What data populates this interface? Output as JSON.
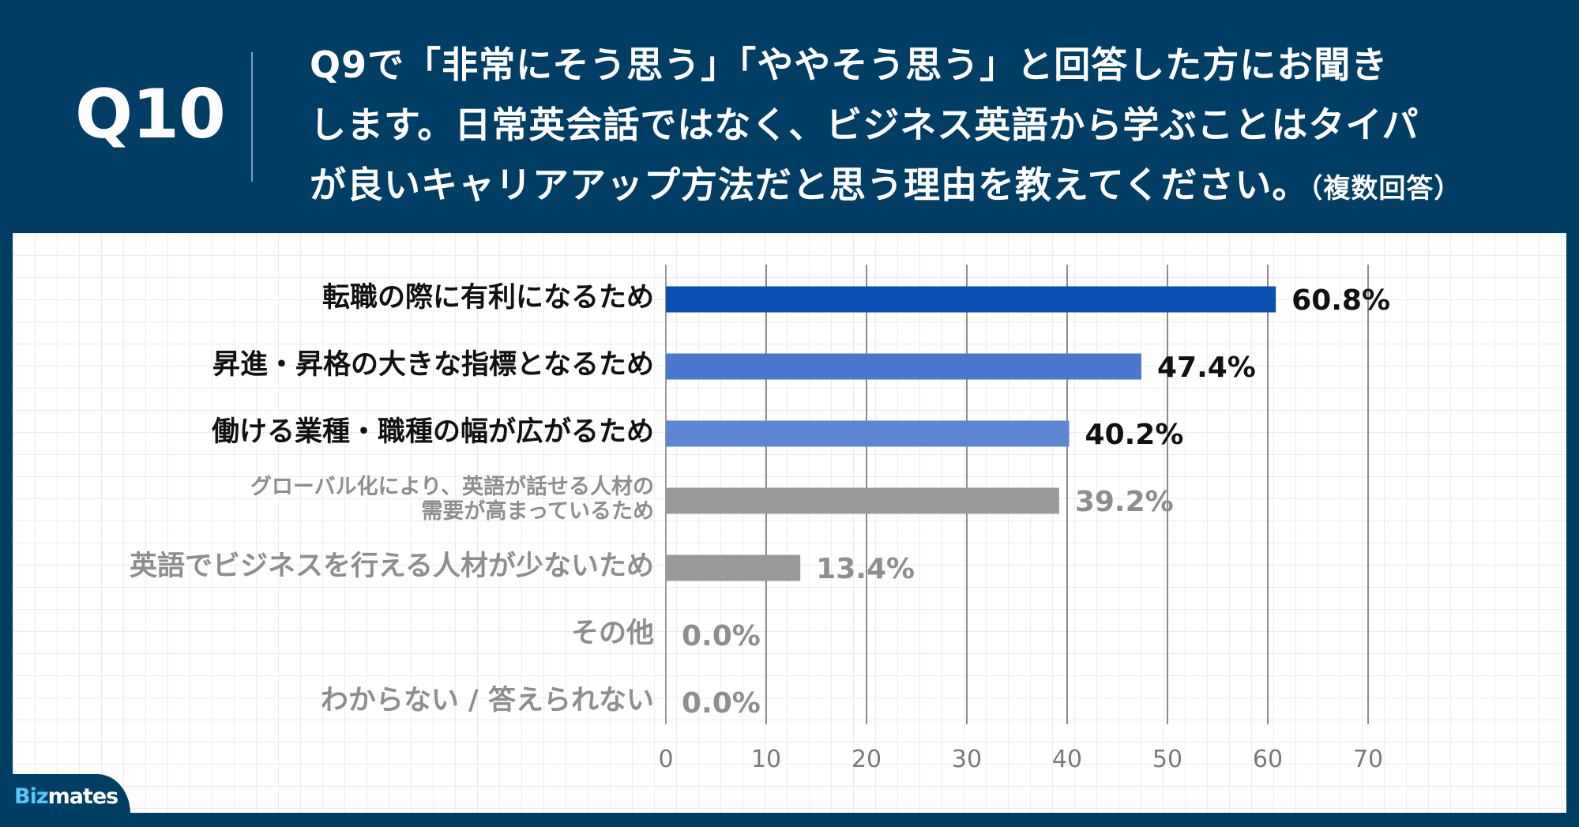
{
  "header": {
    "question_number": "Q10",
    "question_lines": [
      "Q9で「非常にそう思う」「ややそう思う」と回答した方にお聞き",
      "します。日常英会話ではなく、ビジネス英語から学ぶことはタイパ",
      "が良いキャリアアップ方法だと思う理由を教えてください。"
    ],
    "question_note": "（複数回答）"
  },
  "brand": {
    "prefix": "Biz",
    "suffix": "mates"
  },
  "colors": {
    "background": "#013e65",
    "highlight_dark": "#0b4fb5",
    "highlight_mid": "#4a78cf",
    "highlight_light": "#5b87d2",
    "muted": "#999999",
    "text_dark": "#111111",
    "text_muted": "#8e8e8e"
  },
  "chart_data": {
    "type": "bar",
    "orientation": "horizontal",
    "categories": [
      "転職の際に有利になるため",
      "昇進・昇格の大きな指標となるため",
      "働ける業種・職種の幅が広がるため",
      "グローバル化により、英語が話せる人材の\n需要が高まっているため",
      "英語でビジネスを行える人材が少ないため",
      "その他",
      "わからない / 答えられない"
    ],
    "values": [
      60.8,
      47.4,
      40.2,
      39.2,
      13.4,
      0.0,
      0.0
    ],
    "value_labels": [
      "60.8%",
      "47.4%",
      "40.2%",
      "39.2%",
      "13.4%",
      "0.0%",
      "0.0%"
    ],
    "bar_colors": [
      "#0b4fb5",
      "#4a78cf",
      "#5b87d2",
      "#999999",
      "#999999",
      "#999999",
      "#999999"
    ],
    "label_emphasis": [
      "strong",
      "strong",
      "strong",
      "muted",
      "muted",
      "muted",
      "muted"
    ],
    "xlim": [
      0,
      70
    ],
    "xticks": [
      0,
      10,
      20,
      30,
      40,
      50,
      60,
      70
    ],
    "grid": true,
    "legend": "none"
  }
}
